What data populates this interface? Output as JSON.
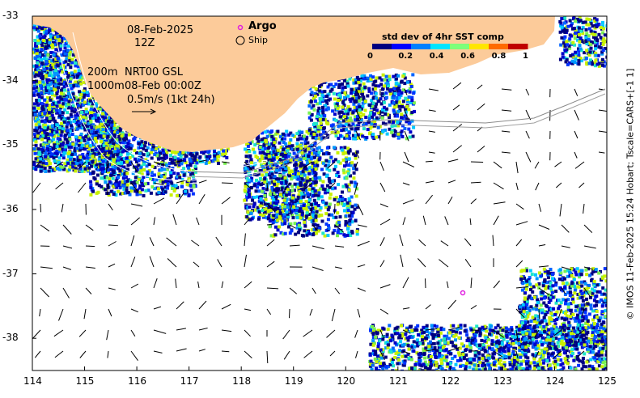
{
  "map": {
    "date": "08-Feb-2025",
    "time": "12Z",
    "depth_line1": "200m",
    "product_line1": "NRT00 GSL",
    "depth_line2": "1000m",
    "product_line2": "08-Feb 00:00Z",
    "scale_label": "0.5m/s (1kt 24h)",
    "legend": {
      "argo_label": "Argo",
      "argo_symbol": "o",
      "ship_label": "Ship"
    },
    "colorbar": {
      "title": "std dev of 4hr SST comp",
      "ticks": [
        "0",
        "0.2",
        "0.4",
        "0.6",
        "0.8",
        "1"
      ],
      "colors": [
        "#00007f",
        "#0000ff",
        "#0080ff",
        "#00e5ff",
        "#7dff7a",
        "#ffe600",
        "#ff6a00",
        "#c00000"
      ]
    },
    "side_text": "© IMOS 11-Feb-2025 15:24 Hobart; Tscale=CARS+[-1 1]",
    "x_ticks": [
      "114",
      "115",
      "116",
      "117",
      "118",
      "119",
      "120",
      "121",
      "122",
      "123",
      "124",
      "125"
    ],
    "y_ticks": [
      "-33",
      "-34",
      "-35",
      "-36",
      "-37",
      "-38"
    ],
    "land_color": "#fccb9a",
    "argo_color": "#e01ee0"
  }
}
